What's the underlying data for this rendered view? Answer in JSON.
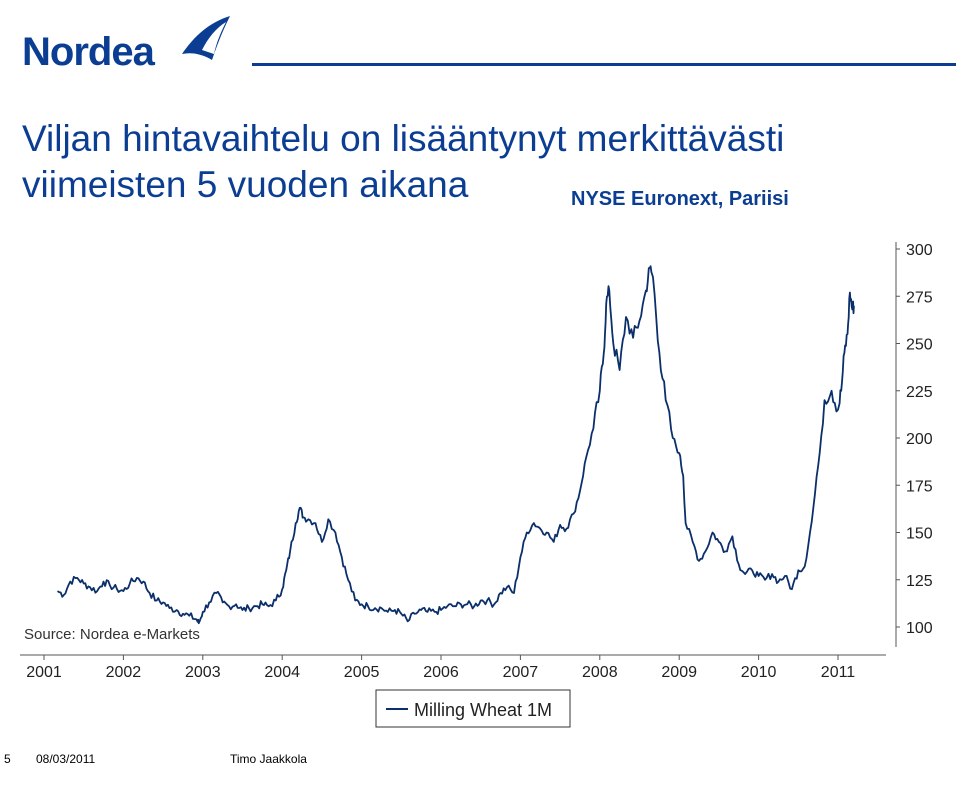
{
  "logo": {
    "text": "Nordea"
  },
  "title": {
    "line1": "Viljan hintavaihtelu on lisääntynyt merkittävästi",
    "line2": "viimeisten 5 vuoden aikana"
  },
  "subtitle": "NYSE Euronext, Pariisi",
  "chart_data": {
    "type": "line",
    "source_note": "Source: Nordea e-Markets",
    "x_tick_labels": [
      "2001",
      "2002",
      "2003",
      "2004",
      "2005",
      "2006",
      "2007",
      "2008",
      "2009",
      "2010",
      "2011"
    ],
    "y_tick_labels": [
      "100",
      "125",
      "150",
      "175",
      "200",
      "225",
      "250",
      "275",
      "300"
    ],
    "ylim": [
      100,
      300
    ],
    "xlim": [
      2001.0,
      2011.6
    ],
    "y_axis_side": "right",
    "grid": false,
    "legend": {
      "placement": "bottom-center",
      "entries": [
        "Milling Wheat 1M"
      ]
    },
    "series": [
      {
        "name": "Milling Wheat 1M",
        "color": "#0b2f6b",
        "points": [
          [
            2001.17,
            119
          ],
          [
            2001.25,
            117
          ],
          [
            2001.33,
            124
          ],
          [
            2001.42,
            126
          ],
          [
            2001.5,
            123
          ],
          [
            2001.58,
            121
          ],
          [
            2001.67,
            119
          ],
          [
            2001.75,
            124
          ],
          [
            2001.83,
            122
          ],
          [
            2001.92,
            120
          ],
          [
            2002.0,
            119
          ],
          [
            2002.08,
            123
          ],
          [
            2002.17,
            126
          ],
          [
            2002.25,
            124
          ],
          [
            2002.33,
            118
          ],
          [
            2002.42,
            114
          ],
          [
            2002.5,
            113
          ],
          [
            2002.58,
            110
          ],
          [
            2002.67,
            109
          ],
          [
            2002.75,
            107
          ],
          [
            2002.83,
            106
          ],
          [
            2002.92,
            104
          ],
          [
            2002.95,
            102
          ],
          [
            2003.0,
            108
          ],
          [
            2003.08,
            113
          ],
          [
            2003.17,
            118
          ],
          [
            2003.25,
            113
          ],
          [
            2003.33,
            111
          ],
          [
            2003.42,
            112
          ],
          [
            2003.5,
            109
          ],
          [
            2003.58,
            110
          ],
          [
            2003.67,
            111
          ],
          [
            2003.75,
            112
          ],
          [
            2003.83,
            111
          ],
          [
            2003.92,
            114
          ],
          [
            2004.0,
            120
          ],
          [
            2004.05,
            130
          ],
          [
            2004.1,
            140
          ],
          [
            2004.17,
            155
          ],
          [
            2004.22,
            163
          ],
          [
            2004.27,
            158
          ],
          [
            2004.33,
            157
          ],
          [
            2004.42,
            155
          ],
          [
            2004.5,
            145
          ],
          [
            2004.58,
            157
          ],
          [
            2004.67,
            150
          ],
          [
            2004.75,
            137
          ],
          [
            2004.83,
            125
          ],
          [
            2004.92,
            114
          ],
          [
            2005.0,
            112
          ],
          [
            2005.08,
            111
          ],
          [
            2005.17,
            110
          ],
          [
            2005.25,
            110
          ],
          [
            2005.33,
            108
          ],
          [
            2005.42,
            109
          ],
          [
            2005.5,
            107
          ],
          [
            2005.58,
            103
          ],
          [
            2005.67,
            107
          ],
          [
            2005.75,
            109
          ],
          [
            2005.83,
            108
          ],
          [
            2005.92,
            108
          ],
          [
            2006.0,
            109
          ],
          [
            2006.08,
            111
          ],
          [
            2006.17,
            111
          ],
          [
            2006.25,
            112
          ],
          [
            2006.33,
            112
          ],
          [
            2006.42,
            111
          ],
          [
            2006.5,
            114
          ],
          [
            2006.58,
            114
          ],
          [
            2006.67,
            112
          ],
          [
            2006.75,
            118
          ],
          [
            2006.83,
            121
          ],
          [
            2006.92,
            118
          ],
          [
            2007.0,
            137
          ],
          [
            2007.08,
            150
          ],
          [
            2007.17,
            155
          ],
          [
            2007.25,
            152
          ],
          [
            2007.33,
            150
          ],
          [
            2007.42,
            145
          ],
          [
            2007.5,
            154
          ],
          [
            2007.58,
            152
          ],
          [
            2007.67,
            160
          ],
          [
            2007.75,
            172
          ],
          [
            2007.83,
            190
          ],
          [
            2007.92,
            205
          ],
          [
            2008.0,
            225
          ],
          [
            2008.05,
            245
          ],
          [
            2008.08,
            271
          ],
          [
            2008.12,
            278
          ],
          [
            2008.17,
            250
          ],
          [
            2008.25,
            236
          ],
          [
            2008.33,
            264
          ],
          [
            2008.42,
            253
          ],
          [
            2008.5,
            262
          ],
          [
            2008.58,
            278
          ],
          [
            2008.63,
            290
          ],
          [
            2008.67,
            285
          ],
          [
            2008.75,
            245
          ],
          [
            2008.83,
            220
          ],
          [
            2008.92,
            200
          ],
          [
            2009.0,
            192
          ],
          [
            2009.05,
            180
          ],
          [
            2009.08,
            155
          ],
          [
            2009.17,
            145
          ],
          [
            2009.25,
            135
          ],
          [
            2009.33,
            140
          ],
          [
            2009.42,
            150
          ],
          [
            2009.5,
            145
          ],
          [
            2009.58,
            140
          ],
          [
            2009.67,
            148
          ],
          [
            2009.75,
            133
          ],
          [
            2009.83,
            128
          ],
          [
            2009.92,
            130
          ],
          [
            2010.0,
            127
          ],
          [
            2010.08,
            125
          ],
          [
            2010.17,
            128
          ],
          [
            2010.25,
            124
          ],
          [
            2010.33,
            127
          ],
          [
            2010.42,
            120
          ],
          [
            2010.5,
            130
          ],
          [
            2010.58,
            132
          ],
          [
            2010.67,
            156
          ],
          [
            2010.75,
            185
          ],
          [
            2010.83,
            220
          ],
          [
            2010.92,
            225
          ],
          [
            2011.0,
            215
          ],
          [
            2011.04,
            225
          ],
          [
            2011.08,
            245
          ],
          [
            2011.12,
            255
          ],
          [
            2011.15,
            277
          ],
          [
            2011.18,
            268
          ],
          [
            2011.2,
            270
          ]
        ]
      }
    ]
  },
  "footer": {
    "page": "5",
    "date": "08/03/2011",
    "author": "Timo Jaakkola"
  }
}
